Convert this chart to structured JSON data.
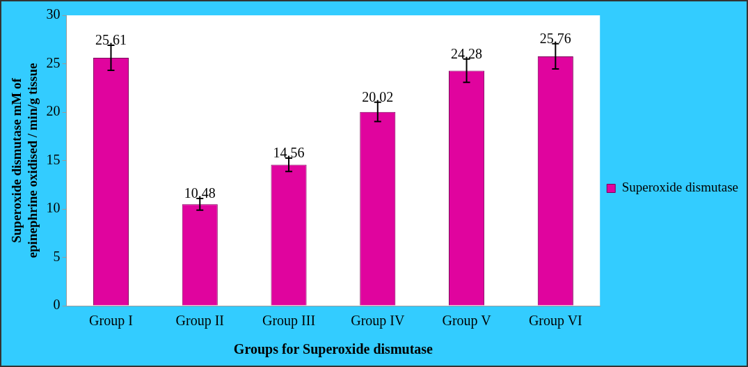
{
  "chart_data": {
    "type": "bar",
    "xlabel": "Groups for Superoxide dismutase",
    "ylabel": "Superoxide dismutase mM of epinephrine oxidised / min/g tissue",
    "categories": [
      "Group I",
      "Group II",
      "Group III",
      "Group IV",
      "Group V",
      "Group VI"
    ],
    "series": [
      {
        "name": "Superoxide dismutase",
        "color": "#e0049e",
        "values": [
          25.61,
          10.48,
          14.56,
          20.02,
          24.28,
          25.76
        ],
        "errors": [
          1.3,
          0.6,
          0.7,
          1.0,
          1.2,
          1.3
        ]
      }
    ],
    "ylim": [
      0,
      30
    ],
    "yticks": [
      0,
      5,
      10,
      15,
      20,
      25,
      30
    ],
    "grid": false,
    "legend": "right",
    "data_labels": true
  }
}
